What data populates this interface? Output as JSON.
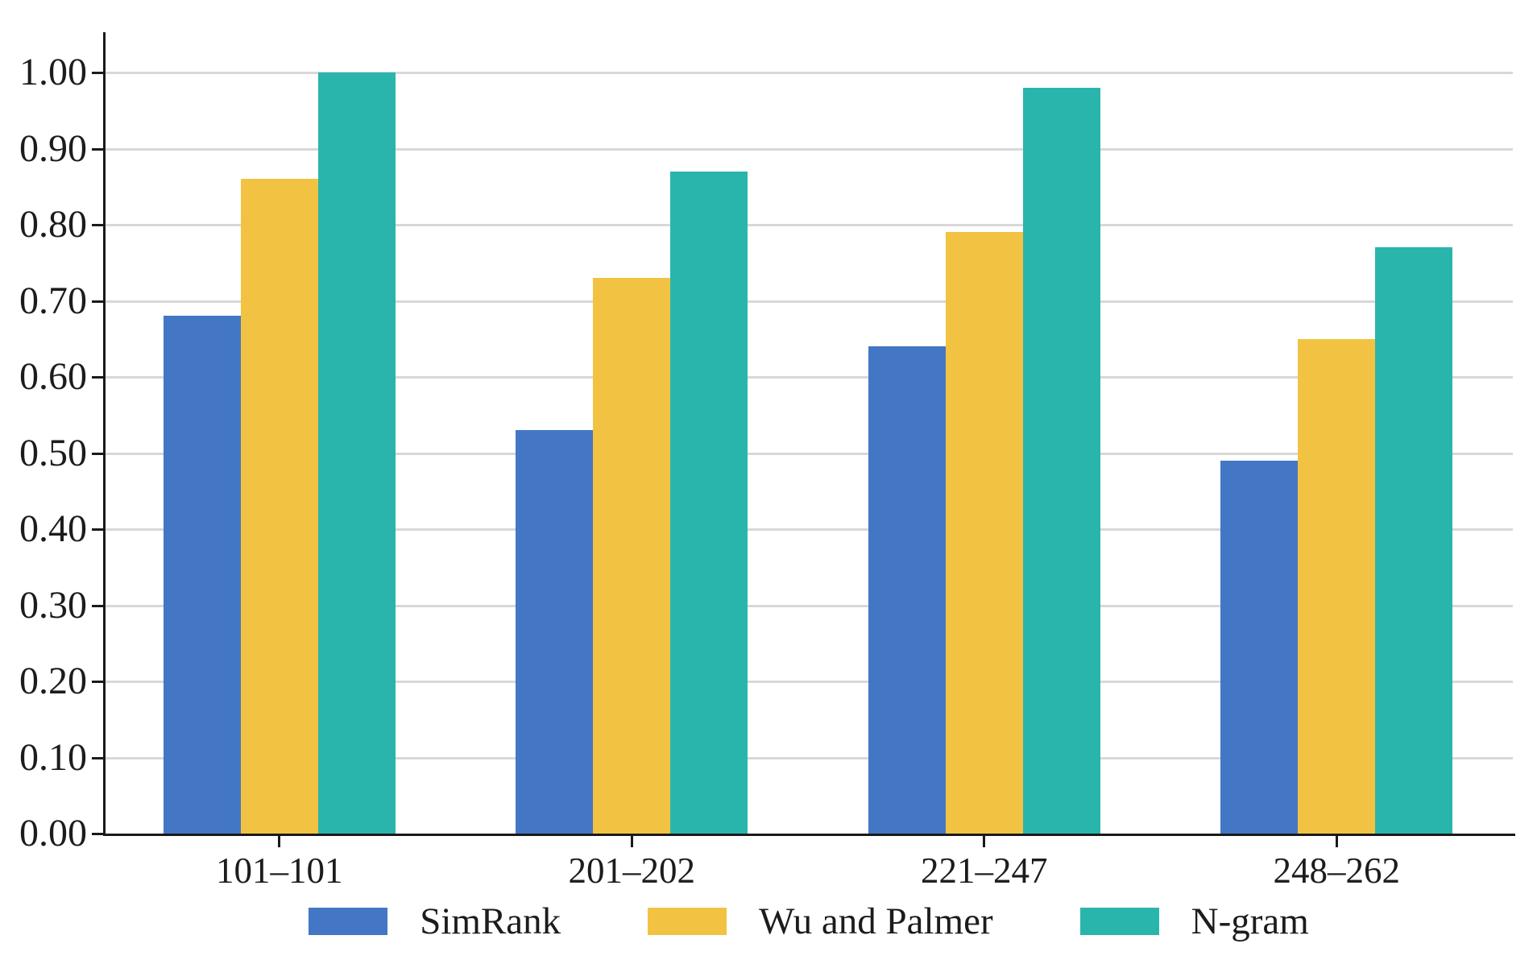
{
  "chart_data": {
    "type": "bar",
    "title": "",
    "xlabel": "",
    "ylabel": "",
    "categories": [
      "101–101",
      "201–202",
      "221–247",
      "248–262"
    ],
    "series": [
      {
        "name": "SimRank",
        "color": "#4377C5",
        "values": [
          0.68,
          0.53,
          0.64,
          0.49
        ]
      },
      {
        "name": "Wu and Palmer",
        "color": "#F2C343",
        "values": [
          0.86,
          0.73,
          0.79,
          0.65
        ]
      },
      {
        "name": "N-gram",
        "color": "#2AB5AC",
        "values": [
          1.0,
          0.87,
          0.98,
          0.77
        ]
      }
    ],
    "ylim": [
      0,
      1.05
    ],
    "yticks": [
      "0.00",
      "0.10",
      "0.20",
      "0.30",
      "0.40",
      "0.50",
      "0.60",
      "0.70",
      "0.80",
      "0.90",
      "1.00"
    ],
    "grid": "horizontal",
    "legend_position": "bottom"
  },
  "colors": {
    "background": "#ffffff",
    "axis": "#1a1a1a",
    "gridline": "#d8d8d8",
    "text": "#1c1c1c"
  }
}
